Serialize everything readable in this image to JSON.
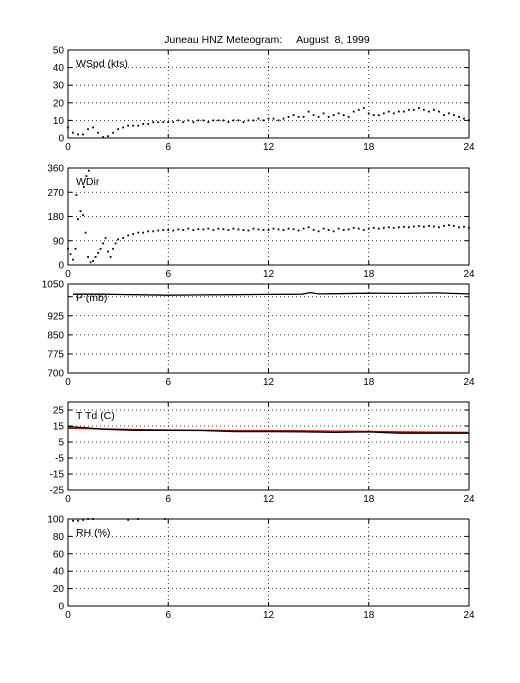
{
  "title": "Juneau HNZ Meteogram:     August  8, 1999",
  "chart_data": [
    {
      "type": "scatter",
      "label": "WSpd (kts)",
      "xlim": [
        0,
        24
      ],
      "ylim": [
        0,
        50
      ],
      "xticks": [
        0,
        6,
        12,
        18,
        24
      ],
      "yticks": [
        0,
        10,
        20,
        30,
        40,
        50
      ],
      "grid": true,
      "color": "#000000",
      "points": [
        [
          0,
          6
        ],
        [
          0.3,
          3
        ],
        [
          0.6,
          2
        ],
        [
          0.9,
          2
        ],
        [
          1.2,
          5
        ],
        [
          1.5,
          6
        ],
        [
          1.8,
          3
        ],
        [
          2.1,
          0.5
        ],
        [
          2.4,
          1
        ],
        [
          2.7,
          3
        ],
        [
          3,
          5
        ],
        [
          3.3,
          6
        ],
        [
          3.6,
          7
        ],
        [
          3.9,
          7
        ],
        [
          4.2,
          7
        ],
        [
          4.5,
          8
        ],
        [
          4.8,
          8
        ],
        [
          5.1,
          9
        ],
        [
          5.4,
          9
        ],
        [
          5.7,
          9
        ],
        [
          6,
          9
        ],
        [
          6.3,
          9
        ],
        [
          6.6,
          10
        ],
        [
          6.9,
          9
        ],
        [
          7.2,
          10
        ],
        [
          7.5,
          9
        ],
        [
          7.8,
          10
        ],
        [
          8.1,
          10
        ],
        [
          8.4,
          9
        ],
        [
          8.7,
          10
        ],
        [
          9,
          10
        ],
        [
          9.3,
          10
        ],
        [
          9.6,
          9
        ],
        [
          9.9,
          10
        ],
        [
          10.2,
          10
        ],
        [
          10.5,
          9
        ],
        [
          10.8,
          10
        ],
        [
          11.1,
          10
        ],
        [
          11.4,
          11
        ],
        [
          11.7,
          10
        ],
        [
          12,
          11
        ],
        [
          12.3,
          11
        ],
        [
          12.6,
          10
        ],
        [
          12.9,
          11
        ],
        [
          13.2,
          12
        ],
        [
          13.5,
          13
        ],
        [
          13.8,
          12
        ],
        [
          14.1,
          12
        ],
        [
          14.4,
          15
        ],
        [
          14.7,
          13
        ],
        [
          15,
          12
        ],
        [
          15.3,
          14
        ],
        [
          15.6,
          12
        ],
        [
          15.9,
          13
        ],
        [
          16.2,
          14
        ],
        [
          16.5,
          13
        ],
        [
          16.8,
          12
        ],
        [
          17.1,
          15
        ],
        [
          17.4,
          16
        ],
        [
          17.7,
          17
        ],
        [
          18,
          14
        ],
        [
          18.3,
          13
        ],
        [
          18.6,
          13
        ],
        [
          18.9,
          14
        ],
        [
          19.2,
          15
        ],
        [
          19.5,
          14
        ],
        [
          19.8,
          15
        ],
        [
          20.1,
          15
        ],
        [
          20.4,
          16
        ],
        [
          20.7,
          16
        ],
        [
          21,
          17
        ],
        [
          21.3,
          16
        ],
        [
          21.6,
          15
        ],
        [
          21.9,
          16
        ],
        [
          22.2,
          15
        ],
        [
          22.5,
          13
        ],
        [
          22.8,
          14
        ],
        [
          23.1,
          13
        ],
        [
          23.4,
          12
        ],
        [
          23.7,
          11
        ],
        [
          24,
          10
        ]
      ]
    },
    {
      "type": "scatter",
      "label": "WDir",
      "xlim": [
        0,
        24
      ],
      "ylim": [
        0,
        360
      ],
      "xticks": [
        0,
        6,
        12,
        18,
        24
      ],
      "yticks": [
        0,
        90,
        180,
        270,
        360
      ],
      "grid": true,
      "color": "#000000",
      "points": [
        [
          0,
          60
        ],
        [
          0.15,
          40
        ],
        [
          0.3,
          20
        ],
        [
          0.45,
          60
        ],
        [
          0.6,
          170
        ],
        [
          0.75,
          200
        ],
        [
          0.9,
          185
        ],
        [
          1.05,
          120
        ],
        [
          1.2,
          30
        ],
        [
          1.35,
          10
        ],
        [
          1.5,
          15
        ],
        [
          1.65,
          30
        ],
        [
          1.8,
          45
        ],
        [
          1.95,
          60
        ],
        [
          2.1,
          80
        ],
        [
          2.25,
          100
        ],
        [
          2.4,
          50
        ],
        [
          2.55,
          30
        ],
        [
          2.7,
          60
        ],
        [
          2.85,
          80
        ],
        [
          3,
          95
        ],
        [
          3.3,
          100
        ],
        [
          3.6,
          110
        ],
        [
          3.9,
          115
        ],
        [
          4.2,
          120
        ],
        [
          4.5,
          120
        ],
        [
          4.8,
          125
        ],
        [
          5.1,
          125
        ],
        [
          5.4,
          128
        ],
        [
          5.7,
          130
        ],
        [
          6,
          130
        ],
        [
          6.3,
          128
        ],
        [
          6.6,
          132
        ],
        [
          6.9,
          130
        ],
        [
          7.2,
          135
        ],
        [
          7.5,
          130
        ],
        [
          7.8,
          133
        ],
        [
          8.1,
          132
        ],
        [
          8.4,
          135
        ],
        [
          8.7,
          130
        ],
        [
          9,
          135
        ],
        [
          9.3,
          133
        ],
        [
          9.6,
          130
        ],
        [
          9.9,
          135
        ],
        [
          10.2,
          132
        ],
        [
          10.5,
          130
        ],
        [
          10.8,
          128
        ],
        [
          11.1,
          135
        ],
        [
          11.4,
          132
        ],
        [
          11.7,
          130
        ],
        [
          12,
          130
        ],
        [
          12.3,
          135
        ],
        [
          12.6,
          132
        ],
        [
          12.9,
          130
        ],
        [
          13.2,
          135
        ],
        [
          13.5,
          133
        ],
        [
          13.8,
          128
        ],
        [
          14.1,
          135
        ],
        [
          14.4,
          140
        ],
        [
          14.7,
          130
        ],
        [
          15,
          125
        ],
        [
          15.3,
          135
        ],
        [
          15.6,
          130
        ],
        [
          15.9,
          125
        ],
        [
          16.2,
          135
        ],
        [
          16.5,
          130
        ],
        [
          16.8,
          132
        ],
        [
          17.1,
          138
        ],
        [
          17.4,
          135
        ],
        [
          17.7,
          130
        ],
        [
          18,
          135
        ],
        [
          18.3,
          138
        ],
        [
          18.6,
          135
        ],
        [
          18.9,
          138
        ],
        [
          19.2,
          140
        ],
        [
          19.5,
          138
        ],
        [
          19.8,
          140
        ],
        [
          20.1,
          142
        ],
        [
          20.4,
          140
        ],
        [
          20.7,
          143
        ],
        [
          21,
          145
        ],
        [
          21.3,
          142
        ],
        [
          21.6,
          145
        ],
        [
          21.9,
          143
        ],
        [
          22.2,
          140
        ],
        [
          22.5,
          145
        ],
        [
          22.8,
          148
        ],
        [
          23.1,
          145
        ],
        [
          23.4,
          140
        ],
        [
          23.7,
          142
        ],
        [
          24,
          138
        ],
        [
          0.5,
          260
        ],
        [
          0.95,
          290
        ],
        [
          1.1,
          330
        ],
        [
          1.25,
          350
        ]
      ]
    },
    {
      "type": "line",
      "label": "P (mb)",
      "xlim": [
        0,
        24
      ],
      "ylim": [
        700,
        1050
      ],
      "xticks": [
        0,
        6,
        12,
        18,
        24
      ],
      "yticks": [
        700,
        775,
        850,
        925,
        1000,
        1050
      ],
      "ytick_labels": [
        "700",
        "775",
        "850",
        "925",
        "",
        "1050"
      ],
      "grid": true,
      "color": "#000000",
      "x": [
        0.3,
        2,
        4,
        6,
        8,
        10,
        12,
        14,
        14.5,
        15,
        16,
        18,
        20,
        22,
        24
      ],
      "y": [
        1010,
        1010,
        1008,
        1006,
        1007,
        1008,
        1009,
        1010,
        1016,
        1011,
        1012,
        1014,
        1013,
        1015,
        1011
      ]
    },
    {
      "type": "line",
      "label": "T Td (C)",
      "xlim": [
        0,
        24
      ],
      "ylim": [
        -25,
        30
      ],
      "xticks": [
        0,
        6,
        12,
        18,
        24
      ],
      "yticks": [
        -25,
        -15,
        -5,
        5,
        15,
        25
      ],
      "grid": true,
      "series": [
        {
          "color": "#cc0000",
          "x": [
            0,
            2,
            4,
            6,
            8,
            10,
            12,
            14,
            16,
            18,
            20,
            22,
            24
          ],
          "y": [
            13.5,
            13.2,
            12.8,
            12.5,
            12.3,
            12.2,
            12.2,
            12,
            11.8,
            11.6,
            11.3,
            11.2,
            11
          ]
        },
        {
          "color": "#000000",
          "x": [
            0,
            1,
            1.5,
            2,
            4,
            6,
            8,
            10,
            12,
            14,
            16,
            18,
            19.5,
            20,
            22,
            24
          ],
          "y": [
            14.5,
            14,
            13.5,
            13,
            12.3,
            12.3,
            12.2,
            11.5,
            11.5,
            11.3,
            11,
            11.3,
            10.6,
            10.5,
            10.5,
            10.5
          ]
        }
      ]
    },
    {
      "type": "scatter",
      "label": "RH (%)",
      "xlim": [
        0,
        24
      ],
      "ylim": [
        0,
        100
      ],
      "xticks": [
        0,
        6,
        12,
        18,
        24
      ],
      "yticks": [
        0,
        20,
        40,
        60,
        80,
        100
      ],
      "grid": true,
      "color": "#000000",
      "points": [
        [
          0.3,
          98
        ],
        [
          0.6,
          98
        ],
        [
          0.9,
          99
        ],
        [
          1.2,
          100
        ],
        [
          1.5,
          100
        ],
        [
          3.6,
          99
        ],
        [
          4.2,
          100
        ],
        [
          5.8,
          100
        ]
      ]
    }
  ]
}
